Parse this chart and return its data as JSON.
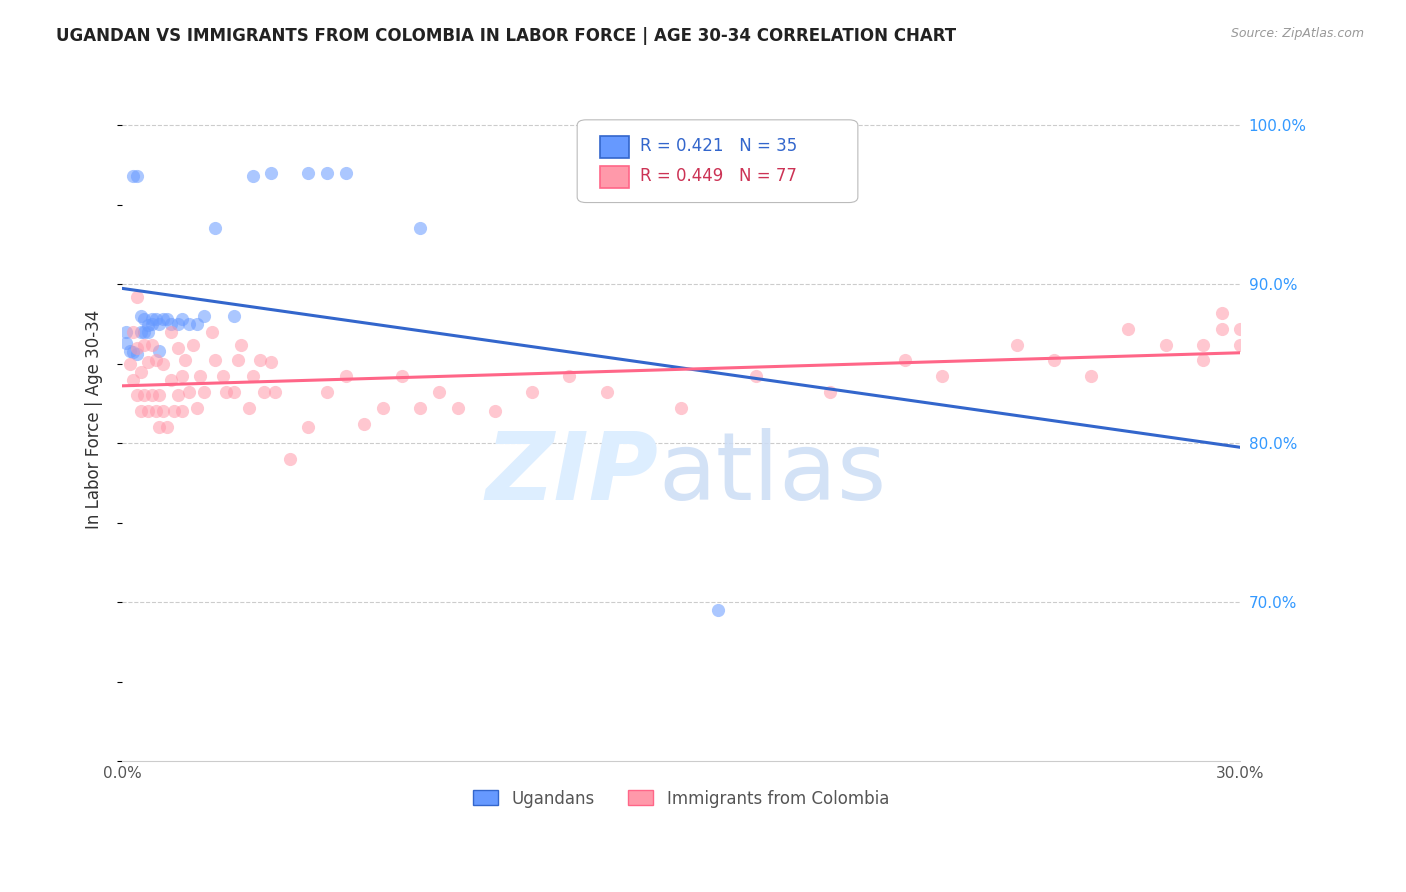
{
  "title": "UGANDAN VS IMMIGRANTS FROM COLOMBIA IN LABOR FORCE | AGE 30-34 CORRELATION CHART",
  "source": "Source: ZipAtlas.com",
  "ylabel": "In Labor Force | Age 30-34",
  "xmin": 0.0,
  "xmax": 0.3,
  "ymin": 0.6,
  "ymax": 1.03,
  "legend_blue_r": "R = 0.421",
  "legend_blue_n": "N = 35",
  "legend_pink_r": "R = 0.449",
  "legend_pink_n": "N = 77",
  "ugandan_color": "#6699ff",
  "colombia_color": "#ff99aa",
  "trendline_blue": "#3366cc",
  "trendline_pink": "#ff6688",
  "ugandan_x": [
    0.001,
    0.001,
    0.002,
    0.003,
    0.004,
    0.005,
    0.005,
    0.006,
    0.006,
    0.007,
    0.007,
    0.008,
    0.008,
    0.009,
    0.01,
    0.01,
    0.011,
    0.012,
    0.013,
    0.015,
    0.016,
    0.018,
    0.02,
    0.022,
    0.025,
    0.03,
    0.035,
    0.04,
    0.05,
    0.055,
    0.06,
    0.08,
    0.16,
    0.003,
    0.004
  ],
  "ugandan_y": [
    0.863,
    0.87,
    0.858,
    0.857,
    0.856,
    0.87,
    0.88,
    0.87,
    0.878,
    0.87,
    0.874,
    0.875,
    0.878,
    0.878,
    0.858,
    0.875,
    0.878,
    0.878,
    0.875,
    0.875,
    0.878,
    0.875,
    0.875,
    0.88,
    0.935,
    0.88,
    0.968,
    0.97,
    0.97,
    0.97,
    0.97,
    0.935,
    0.695,
    0.968,
    0.968
  ],
  "colombia_x": [
    0.002,
    0.003,
    0.004,
    0.004,
    0.005,
    0.005,
    0.006,
    0.006,
    0.007,
    0.007,
    0.008,
    0.008,
    0.009,
    0.009,
    0.01,
    0.01,
    0.011,
    0.011,
    0.012,
    0.013,
    0.013,
    0.014,
    0.015,
    0.015,
    0.016,
    0.016,
    0.017,
    0.018,
    0.019,
    0.02,
    0.021,
    0.022,
    0.024,
    0.025,
    0.027,
    0.028,
    0.03,
    0.031,
    0.032,
    0.034,
    0.035,
    0.037,
    0.038,
    0.04,
    0.041,
    0.045,
    0.05,
    0.055,
    0.06,
    0.065,
    0.07,
    0.075,
    0.08,
    0.085,
    0.09,
    0.1,
    0.11,
    0.12,
    0.13,
    0.15,
    0.17,
    0.19,
    0.21,
    0.22,
    0.24,
    0.25,
    0.26,
    0.27,
    0.28,
    0.29,
    0.29,
    0.295,
    0.295,
    0.3,
    0.3,
    0.004,
    0.003
  ],
  "colombia_y": [
    0.85,
    0.84,
    0.83,
    0.86,
    0.82,
    0.845,
    0.83,
    0.862,
    0.82,
    0.851,
    0.83,
    0.862,
    0.82,
    0.852,
    0.81,
    0.83,
    0.82,
    0.85,
    0.81,
    0.84,
    0.87,
    0.82,
    0.83,
    0.86,
    0.82,
    0.842,
    0.852,
    0.832,
    0.862,
    0.822,
    0.842,
    0.832,
    0.87,
    0.852,
    0.842,
    0.832,
    0.832,
    0.852,
    0.862,
    0.822,
    0.842,
    0.852,
    0.832,
    0.851,
    0.832,
    0.79,
    0.81,
    0.832,
    0.842,
    0.812,
    0.822,
    0.842,
    0.822,
    0.832,
    0.822,
    0.82,
    0.832,
    0.842,
    0.832,
    0.822,
    0.842,
    0.832,
    0.852,
    0.842,
    0.862,
    0.852,
    0.842,
    0.872,
    0.862,
    0.852,
    0.862,
    0.872,
    0.882,
    0.862,
    0.872,
    0.892,
    0.87
  ]
}
